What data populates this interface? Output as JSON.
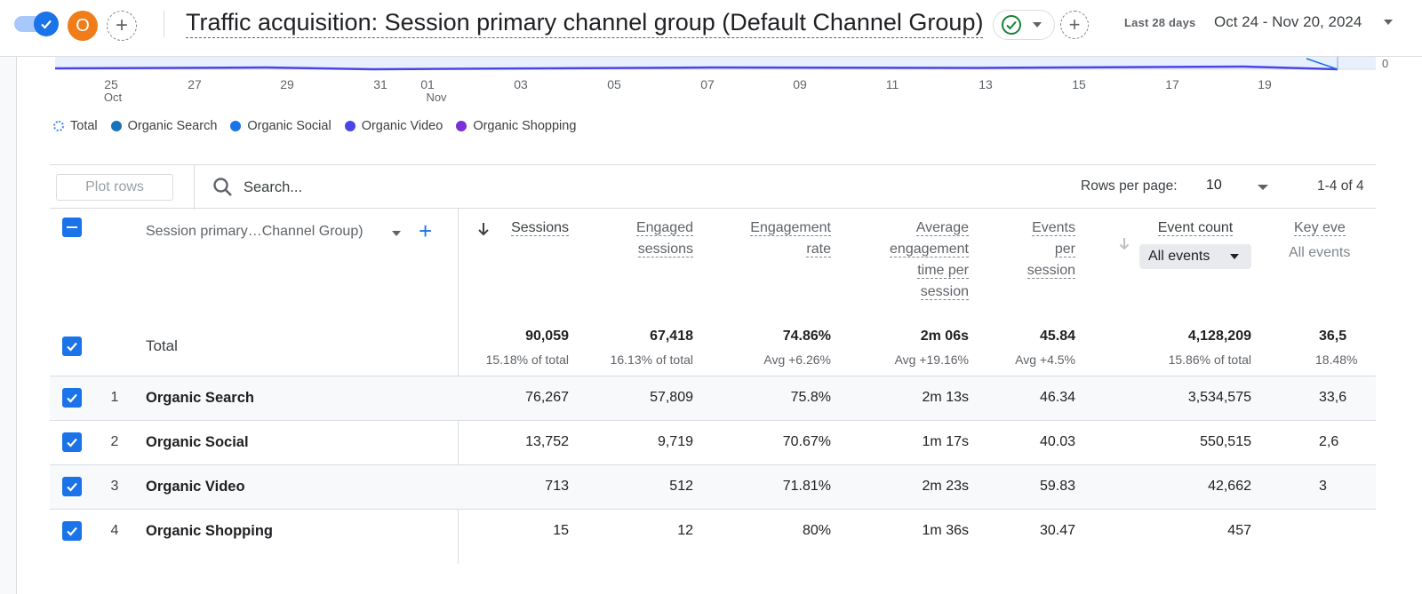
{
  "header": {
    "avatar_letter": "O",
    "title": "Traffic acquisition: Session primary channel group (Default Channel Group)",
    "date_label": "Last 28 days",
    "date_range": "Oct 24 - Nov 20, 2024"
  },
  "chart": {
    "y_tick": "0",
    "x_ticks": [
      "25",
      "27",
      "29",
      "31",
      "01",
      "03",
      "05",
      "07",
      "09",
      "11",
      "13",
      "15",
      "17",
      "19"
    ],
    "x_sub": {
      "oct": "Oct",
      "nov": "Nov"
    },
    "legend": [
      {
        "label": "Total",
        "color": "#4285f4"
      },
      {
        "label": "Organic Search",
        "color": "#1a73b8"
      },
      {
        "label": "Organic Social",
        "color": "#1a73e8"
      },
      {
        "label": "Organic Video",
        "color": "#4b45e8"
      },
      {
        "label": "Organic Shopping",
        "color": "#7b2fd6"
      }
    ]
  },
  "toolbar": {
    "plot_rows": "Plot rows",
    "search_placeholder": "Search...",
    "rows_per_page_label": "Rows per page:",
    "rows_per_page_value": "10",
    "pager": "1-4 of 4"
  },
  "table": {
    "dimension_header": "Session primary…Channel Group)",
    "columns": [
      {
        "label": "Sessions"
      },
      {
        "label": "Engaged sessions"
      },
      {
        "label": "Engagement rate"
      },
      {
        "label": "Average engagement time per session"
      },
      {
        "label": "Events per session"
      },
      {
        "label": "Event count",
        "filter": "All events"
      },
      {
        "label": "Key eve",
        "filter": "All events"
      }
    ],
    "total": {
      "label": "Total",
      "values": [
        "90,059",
        "67,418",
        "74.86%",
        "2m 06s",
        "45.84",
        "4,128,209",
        "36,5"
      ],
      "subs": [
        "15.18% of total",
        "16.13% of total",
        "Avg +6.26%",
        "Avg +19.16%",
        "Avg +4.5%",
        "15.86% of total",
        "18.48%"
      ]
    },
    "rows": [
      {
        "num": "1",
        "name": "Organic Search",
        "values": [
          "76,267",
          "57,809",
          "75.8%",
          "2m 13s",
          "46.34",
          "3,534,575",
          "33,6"
        ]
      },
      {
        "num": "2",
        "name": "Organic Social",
        "values": [
          "13,752",
          "9,719",
          "70.67%",
          "1m 17s",
          "40.03",
          "550,515",
          "2,6"
        ]
      },
      {
        "num": "3",
        "name": "Organic Video",
        "values": [
          "713",
          "512",
          "71.81%",
          "2m 23s",
          "59.83",
          "42,662",
          "3"
        ]
      },
      {
        "num": "4",
        "name": "Organic Shopping",
        "values": [
          "15",
          "12",
          "80%",
          "1m 36s",
          "30.47",
          "457",
          ""
        ]
      }
    ]
  }
}
